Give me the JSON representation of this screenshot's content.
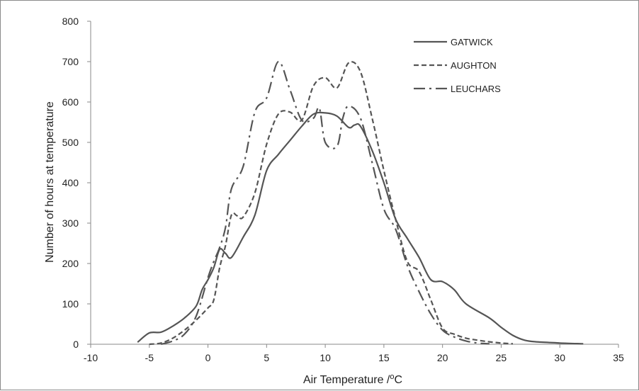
{
  "chart_data": {
    "type": "line",
    "title": "",
    "xlabel": "Air Temperature /",
    "xlabel_sup": "o",
    "xlabel_unit": "C",
    "ylabel": "Number of hours at temperature",
    "xlim": [
      -10,
      35
    ],
    "ylim": [
      0,
      800
    ],
    "x_ticks": [
      "-10",
      "-5",
      "0",
      "5",
      "10",
      "15",
      "20",
      "25",
      "30",
      "35"
    ],
    "y_ticks": [
      "0",
      "100",
      "200",
      "300",
      "400",
      "500",
      "600",
      "700",
      "800"
    ],
    "grid": false,
    "legend_position": "top-right",
    "series": [
      {
        "name": "GATWICK",
        "style": "solid",
        "color": "#555555",
        "points": [
          [
            -6,
            5
          ],
          [
            -5,
            28
          ],
          [
            -4,
            30
          ],
          [
            -3,
            45
          ],
          [
            -2,
            65
          ],
          [
            -1,
            95
          ],
          [
            -0.5,
            135
          ],
          [
            0,
            160
          ],
          [
            0.5,
            190
          ],
          [
            1,
            235
          ],
          [
            1.5,
            225
          ],
          [
            2,
            215
          ],
          [
            3,
            265
          ],
          [
            4,
            320
          ],
          [
            5,
            430
          ],
          [
            6,
            470
          ],
          [
            7,
            505
          ],
          [
            8,
            540
          ],
          [
            9,
            570
          ],
          [
            10,
            573
          ],
          [
            11,
            565
          ],
          [
            12,
            537
          ],
          [
            12.5,
            543
          ],
          [
            13,
            540
          ],
          [
            14,
            480
          ],
          [
            15,
            400
          ],
          [
            16,
            310
          ],
          [
            17,
            262
          ],
          [
            18,
            215
          ],
          [
            19,
            160
          ],
          [
            20,
            155
          ],
          [
            21,
            135
          ],
          [
            22,
            100
          ],
          [
            24,
            65
          ],
          [
            25,
            42
          ],
          [
            26,
            22
          ],
          [
            27,
            10
          ],
          [
            28,
            6
          ],
          [
            30,
            3
          ],
          [
            32,
            1
          ]
        ]
      },
      {
        "name": "AUGHTON",
        "style": "dashed",
        "color": "#555555",
        "points": [
          [
            -5,
            0
          ],
          [
            -4,
            3
          ],
          [
            -3,
            15
          ],
          [
            -2,
            35
          ],
          [
            -1,
            60
          ],
          [
            0,
            90
          ],
          [
            0.5,
            110
          ],
          [
            1,
            190
          ],
          [
            1.5,
            245
          ],
          [
            2,
            320
          ],
          [
            2.5,
            318
          ],
          [
            3,
            315
          ],
          [
            4,
            375
          ],
          [
            5,
            495
          ],
          [
            6,
            570
          ],
          [
            7,
            575
          ],
          [
            8,
            555
          ],
          [
            9,
            640
          ],
          [
            10,
            660
          ],
          [
            11,
            635
          ],
          [
            12,
            697
          ],
          [
            13,
            675
          ],
          [
            14,
            560
          ],
          [
            15,
            430
          ],
          [
            16,
            310
          ],
          [
            17,
            205
          ],
          [
            18,
            180
          ],
          [
            19,
            110
          ],
          [
            20,
            40
          ],
          [
            21,
            25
          ],
          [
            22,
            15
          ],
          [
            23,
            10
          ],
          [
            24,
            6
          ],
          [
            25,
            3
          ],
          [
            26,
            1
          ]
        ]
      },
      {
        "name": "LEUCHARS",
        "style": "dashdot",
        "color": "#555555",
        "points": [
          [
            -4,
            0
          ],
          [
            -3,
            8
          ],
          [
            -2,
            25
          ],
          [
            -1,
            70
          ],
          [
            0,
            165
          ],
          [
            0.5,
            205
          ],
          [
            1,
            240
          ],
          [
            1.5,
            290
          ],
          [
            2,
            385
          ],
          [
            3,
            440
          ],
          [
            4,
            575
          ],
          [
            5,
            610
          ],
          [
            6,
            700
          ],
          [
            7,
            630
          ],
          [
            8,
            555
          ],
          [
            9,
            560
          ],
          [
            9.5,
            585
          ],
          [
            10,
            500
          ],
          [
            11,
            490
          ],
          [
            11.5,
            560
          ],
          [
            12,
            590
          ],
          [
            13,
            560
          ],
          [
            14,
            450
          ],
          [
            15,
            335
          ],
          [
            16,
            285
          ],
          [
            17,
            195
          ],
          [
            18,
            130
          ],
          [
            19,
            75
          ],
          [
            20,
            35
          ],
          [
            21,
            18
          ],
          [
            22,
            8
          ],
          [
            23,
            3
          ],
          [
            24,
            1
          ]
        ]
      }
    ]
  }
}
